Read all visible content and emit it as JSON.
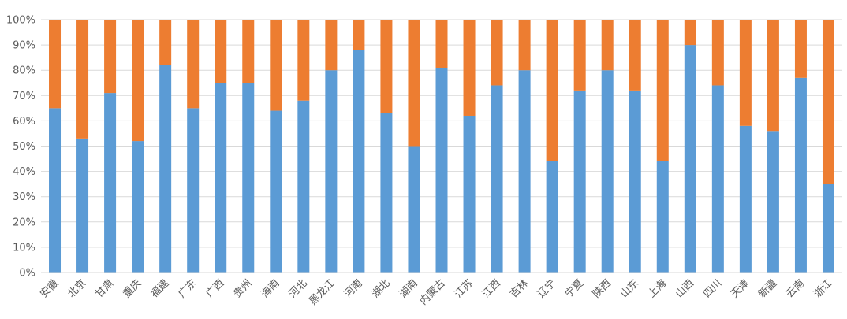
{
  "chart_data": {
    "type": "bar",
    "stacked": true,
    "percent_stacked": true,
    "title": "",
    "xlabel": "",
    "ylabel": "",
    "ylim": [
      0,
      100
    ],
    "yticks": [
      "0%",
      "10%",
      "20%",
      "30%",
      "40%",
      "50%",
      "60%",
      "70%",
      "80%",
      "90%",
      "100%"
    ],
    "grid": true,
    "legend": "none",
    "categories": [
      "安徽",
      "北京",
      "甘肃",
      "重庆",
      "福建",
      "广东",
      "广西",
      "贵州",
      "海南",
      "河北",
      "黑龙江",
      "河南",
      "湖北",
      "湖南",
      "内蒙古",
      "江苏",
      "江西",
      "吉林",
      "辽宁",
      "宁夏",
      "陕西",
      "山东",
      "上海",
      "山西",
      "四川",
      "天津",
      "新疆",
      "云南",
      "浙江"
    ],
    "series": [
      {
        "color": "#5b9bd5",
        "values": [
          65,
          53,
          71,
          52,
          82,
          65,
          75,
          75,
          64,
          68,
          80,
          88,
          63,
          50,
          81,
          62,
          74,
          80,
          44,
          72,
          80,
          72,
          44,
          90,
          74,
          58,
          56,
          77,
          35
        ]
      },
      {
        "color": "#ed7d31",
        "values": [
          35,
          47,
          29,
          48,
          18,
          35,
          25,
          25,
          36,
          32,
          20,
          12,
          37,
          50,
          19,
          38,
          26,
          20,
          56,
          28,
          20,
          28,
          56,
          10,
          26,
          42,
          44,
          23,
          65
        ]
      }
    ]
  }
}
